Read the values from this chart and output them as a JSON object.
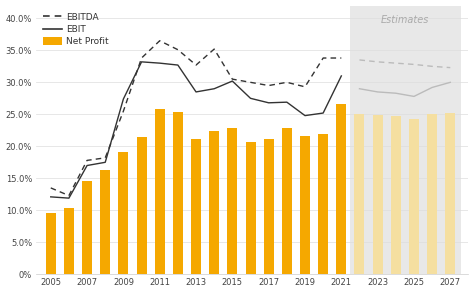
{
  "years_historical": [
    2005,
    2006,
    2007,
    2008,
    2009,
    2010,
    2011,
    2012,
    2013,
    2014,
    2015,
    2016,
    2017,
    2018,
    2019,
    2020,
    2021
  ],
  "years_estimates": [
    2022,
    2023,
    2024,
    2025,
    2026,
    2027
  ],
  "net_profit_hist": [
    9.5,
    10.3,
    14.6,
    16.3,
    19.1,
    21.5,
    25.9,
    25.4,
    21.2,
    22.4,
    22.9,
    20.7,
    21.1,
    22.8,
    21.6,
    22.0,
    26.6
  ],
  "net_profit_est": [
    25.0,
    24.9,
    24.7,
    24.3,
    25.0,
    25.2
  ],
  "ebitda_hist": [
    13.5,
    12.3,
    17.8,
    18.2,
    25.5,
    33.8,
    36.5,
    35.1,
    32.7,
    35.2,
    30.5,
    30.0,
    29.5,
    30.0,
    29.3,
    33.8,
    33.8
  ],
  "ebitda_est": [
    33.5,
    33.2,
    33.0,
    32.8,
    32.5,
    32.3
  ],
  "ebit_hist": [
    12.1,
    11.9,
    17.0,
    17.5,
    27.4,
    33.2,
    33.0,
    32.7,
    28.5,
    29.0,
    30.2,
    27.5,
    26.8,
    26.9,
    24.8,
    25.2,
    31.0
  ],
  "ebit_est": [
    29.0,
    28.5,
    28.3,
    27.8,
    29.2,
    30.0
  ],
  "ylim": [
    0,
    42
  ],
  "yticks": [
    0,
    5,
    10,
    15,
    20,
    25,
    30,
    35,
    40
  ],
  "ytick_labels": [
    "0%",
    "5.0%",
    "10.0%",
    "15.0%",
    "20.0%",
    "25.0%",
    "30.0%",
    "35.0%",
    "40.0%"
  ],
  "bar_color_hist": "#F5A800",
  "bar_color_est": "#F5DFA0",
  "ebitda_color_hist": "#333333",
  "ebit_color_hist": "#333333",
  "ebitda_color_est": "#BBBBBB",
  "ebit_color_est": "#BBBBBB",
  "plot_bg_color": "#FFFFFF",
  "estimates_bg_color": "#E8E8E8",
  "estimates_label": "Estimates",
  "legend_labels": [
    "EBITDA",
    "EBIT",
    "Net Profit"
  ],
  "xticks": [
    2005,
    2007,
    2009,
    2011,
    2013,
    2015,
    2017,
    2019,
    2021,
    2023,
    2025,
    2027
  ],
  "xlim_left": 2004.2,
  "xlim_right": 2028.0
}
